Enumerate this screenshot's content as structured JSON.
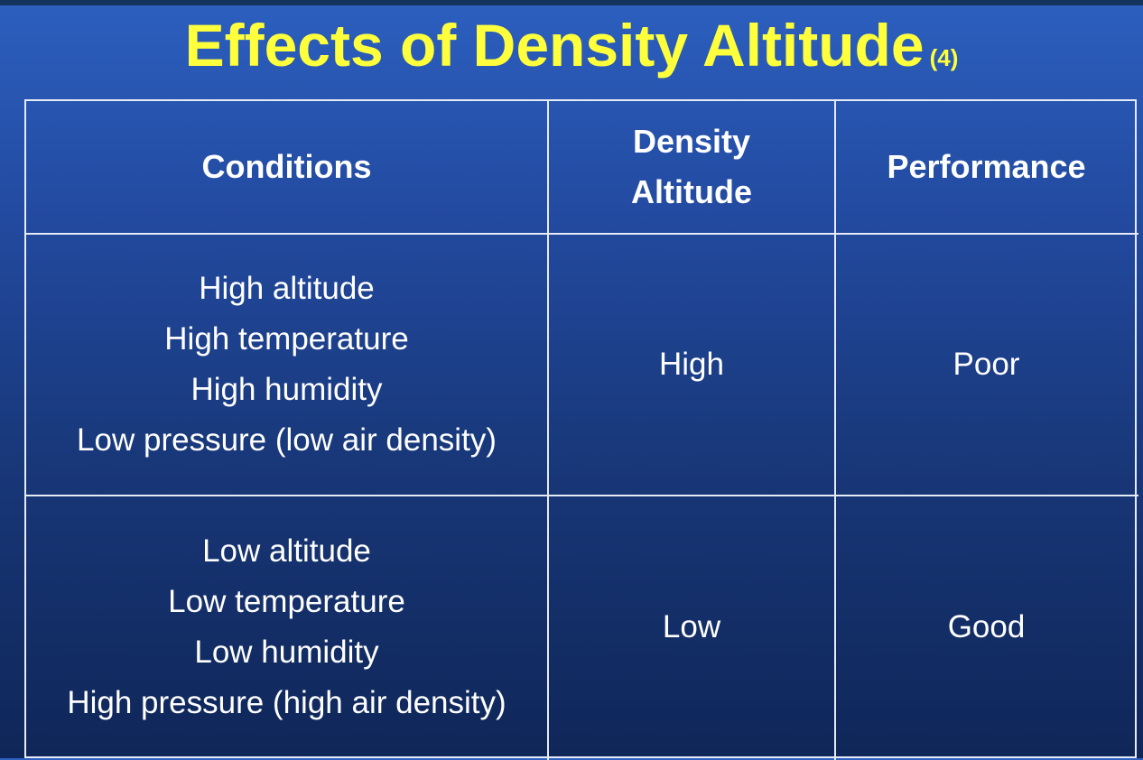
{
  "title": {
    "main": "Effects of Density Altitude",
    "note": "(4)"
  },
  "table": {
    "headers": {
      "conditions": "Conditions",
      "density_altitude_line1": "Density",
      "density_altitude_line2": "Altitude",
      "performance": "Performance"
    },
    "rows": [
      {
        "conditions": [
          "High altitude",
          "High temperature",
          "High humidity",
          "Low pressure (low air density)"
        ],
        "density_altitude": "High",
        "performance": "Poor"
      },
      {
        "conditions": [
          "Low altitude",
          "Low temperature",
          "Low humidity",
          "High pressure (high air density)"
        ],
        "density_altitude": "Low",
        "performance": "Good"
      }
    ]
  },
  "colors": {
    "title": "#ffff3b",
    "text": "#ffffff",
    "grid": "#e6ebf5",
    "background_top": "#2c5fbf",
    "background_bottom": "#0f2658"
  }
}
